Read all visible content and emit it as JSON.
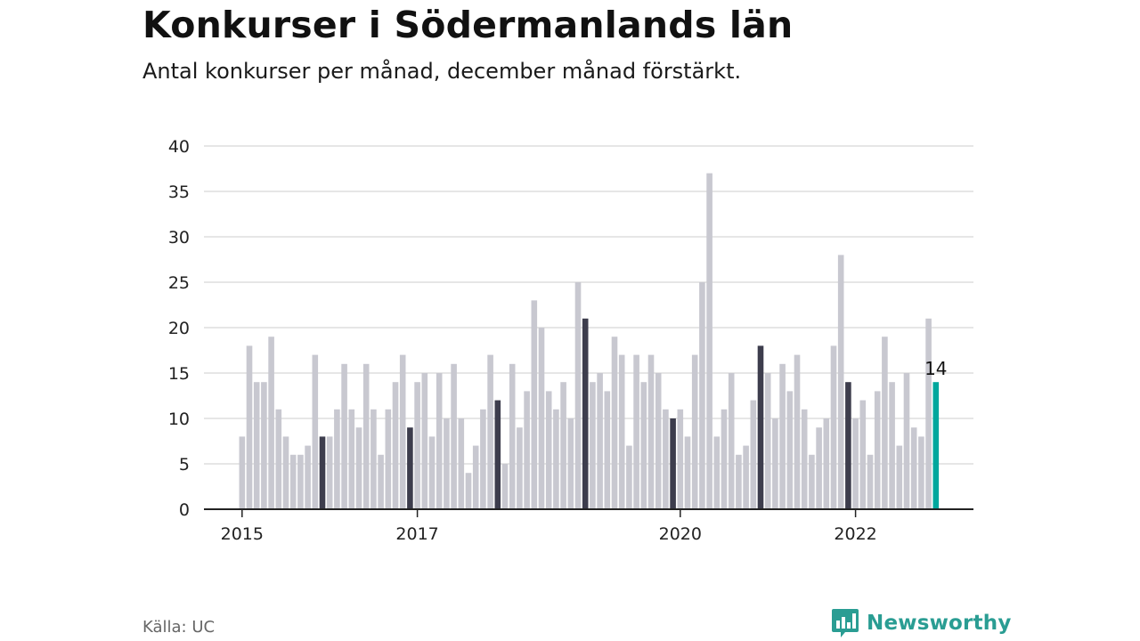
{
  "header": {
    "title": "Konkurser i Södermanlands län",
    "subtitle": "Antal konkurser per månad, december månad förstärkt."
  },
  "footer": {
    "source": "Källa: UC",
    "brand": "Newsworthy",
    "brand_icon": "newsworthy-chart-logo-icon"
  },
  "colors": {
    "bar": "#c8c8d0",
    "december": "#3d3d4d",
    "latest": "#00a79d",
    "grid": "#dddddd",
    "axis": "#222222",
    "brand": "#2a9d93"
  },
  "chart_data": {
    "type": "bar",
    "title": "Konkurser i Södermanlands län",
    "subtitle": "Antal konkurser per månad, december månad förstärkt.",
    "xlabel": "",
    "ylabel": "",
    "ylim": [
      0,
      40
    ],
    "yticks": [
      0,
      5,
      10,
      15,
      20,
      25,
      30,
      35,
      40
    ],
    "grid": true,
    "start": "2015-01",
    "x_tick_labels": [
      {
        "label": "2015",
        "index": 0
      },
      {
        "label": "2017",
        "index": 24
      },
      {
        "label": "2020",
        "index": 60
      },
      {
        "label": "2022",
        "index": 84
      }
    ],
    "values": [
      8,
      18,
      14,
      14,
      19,
      11,
      8,
      6,
      6,
      7,
      17,
      8,
      8,
      11,
      16,
      11,
      9,
      16,
      11,
      6,
      11,
      14,
      17,
      9,
      14,
      15,
      8,
      15,
      10,
      16,
      10,
      4,
      7,
      11,
      17,
      12,
      5,
      16,
      9,
      13,
      23,
      20,
      13,
      11,
      14,
      10,
      25,
      21,
      14,
      15,
      13,
      19,
      17,
      7,
      17,
      14,
      17,
      15,
      11,
      10,
      11,
      8,
      17,
      25,
      37,
      8,
      11,
      15,
      6,
      7,
      12,
      18,
      15,
      10,
      16,
      13,
      17,
      11,
      6,
      9,
      10,
      18,
      28,
      14,
      10,
      12,
      6,
      13,
      19,
      14,
      7,
      15,
      9,
      8,
      21,
      14
    ],
    "highlight": "december",
    "latest_label": "14"
  }
}
